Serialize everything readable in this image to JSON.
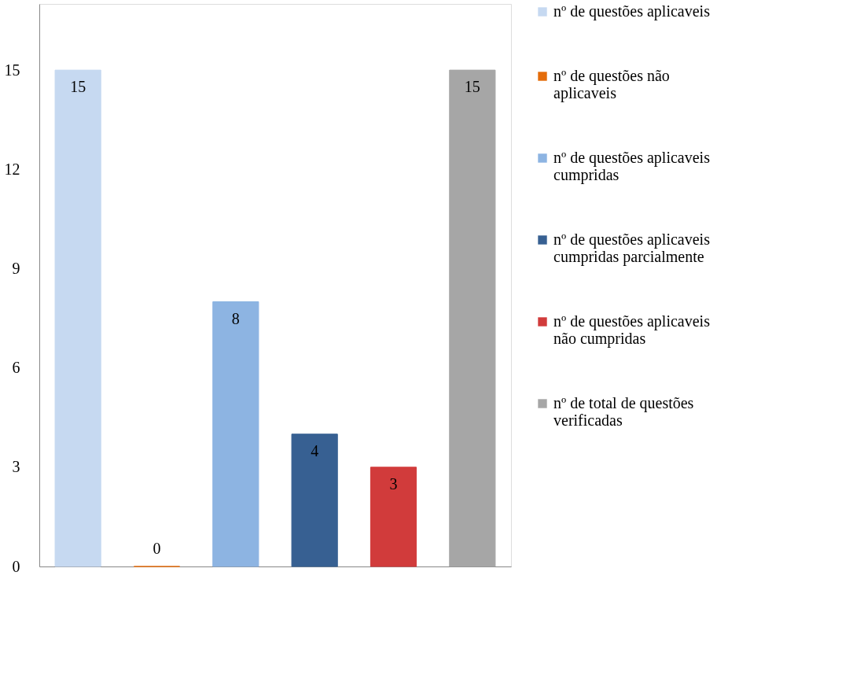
{
  "chart_data": {
    "type": "bar",
    "categories": [
      null,
      null,
      null,
      null,
      null,
      null
    ],
    "series": [
      {
        "name": "nº de questões aplicaveis",
        "color": "#c6d9f1",
        "values": [
          15,
          null,
          null,
          null,
          null,
          null
        ]
      },
      {
        "name": "nº de questões não aplicaveis",
        "color": "#e46c0a",
        "values": [
          null,
          0,
          null,
          null,
          null,
          null
        ]
      },
      {
        "name": " nº de questões aplicaveis cumpridas",
        "color": "#8db4e2",
        "values": [
          null,
          null,
          8,
          null,
          null,
          null
        ]
      },
      {
        "name": "nº de questões aplicaveis cumpridas parcialmente",
        "color": "#376092",
        "values": [
          null,
          null,
          null,
          4,
          null,
          null
        ]
      },
      {
        "name": "nº de questões aplicaveis não cumpridas",
        "color": "#d13b3b",
        "values": [
          null,
          null,
          null,
          null,
          3,
          null
        ]
      },
      {
        "name": "nº de total de questões verificadas",
        "color": "#a6a6a6",
        "values": [
          null,
          null,
          null,
          null,
          null,
          15
        ]
      }
    ],
    "ylim": [
      0,
      17
    ],
    "yticks": [
      0,
      3,
      6,
      9,
      12,
      15
    ],
    "grid": false,
    "legend": "right",
    "data_labels": true,
    "tick_labels": "y"
  }
}
